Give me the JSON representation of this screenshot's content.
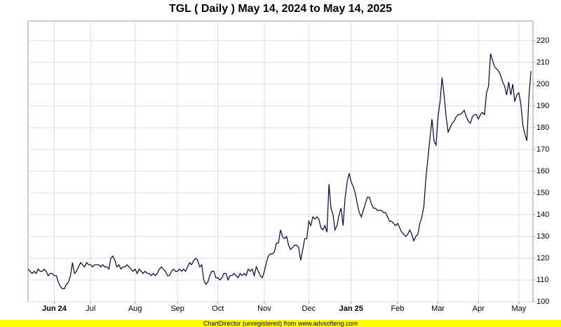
{
  "chart_data": {
    "type": "line",
    "title": "TGL ( Daily ) May 14, 2024 to May 14, 2025",
    "footer": "ChartDirector (unregistered) from www.advsofteng.com",
    "color": "#000044",
    "grid": true,
    "ylim": [
      100,
      229
    ],
    "yticks": [
      100,
      110,
      120,
      130,
      140,
      150,
      160,
      170,
      180,
      190,
      200,
      210,
      220
    ],
    "xlim": [
      0,
      250
    ],
    "xticks": [
      {
        "value": 13,
        "label": "Jun 24"
      },
      {
        "value": 31,
        "label": "Jul"
      },
      {
        "value": 53,
        "label": "Aug"
      },
      {
        "value": 74,
        "label": "Sep"
      },
      {
        "value": 94,
        "label": "Oct"
      },
      {
        "value": 117,
        "label": "Nov"
      },
      {
        "value": 139,
        "label": "Dec"
      },
      {
        "value": 160,
        "label": "Jan 25"
      },
      {
        "value": 183,
        "label": "Feb"
      },
      {
        "value": 203,
        "label": "Mar"
      },
      {
        "value": 223,
        "label": "Apr"
      },
      {
        "value": 243,
        "label": "May"
      }
    ],
    "values": [
      115,
      114,
      113,
      114,
      113,
      115,
      114,
      114,
      115,
      114,
      112,
      113,
      113,
      112,
      112,
      109,
      107,
      106,
      106,
      108,
      109,
      112,
      118,
      113,
      114,
      116,
      118,
      117,
      116,
      118,
      117,
      117,
      116,
      117,
      117,
      117,
      116,
      117,
      116,
      116,
      115,
      120,
      121,
      119,
      116,
      117,
      115,
      116,
      116,
      117,
      116,
      115,
      114,
      115,
      113,
      115,
      114,
      113,
      114,
      113,
      113,
      112,
      113,
      112,
      113,
      115,
      116,
      115,
      114,
      112,
      112,
      114,
      115,
      114,
      114,
      115,
      114,
      115,
      114,
      116,
      118,
      117,
      119,
      120,
      119,
      116,
      117,
      110,
      108,
      109,
      112,
      114,
      114,
      111,
      111,
      110,
      111,
      113,
      113,
      110,
      112,
      112,
      113,
      112,
      111,
      113,
      112,
      113,
      112,
      115,
      114,
      115,
      112,
      116,
      114,
      112,
      111,
      114,
      118,
      121,
      122,
      122,
      123,
      127,
      127,
      133,
      130,
      129,
      130,
      126,
      124,
      125,
      126,
      126,
      125,
      119,
      124,
      129,
      129,
      137,
      135,
      139,
      138,
      139,
      138,
      134,
      133,
      135,
      132,
      154,
      143,
      140,
      133,
      135,
      140,
      143,
      135,
      148,
      155,
      159,
      155,
      153,
      150,
      145,
      141,
      139,
      142,
      145,
      148,
      148,
      145,
      143,
      143,
      142,
      142,
      142,
      141,
      141,
      139,
      137,
      137,
      136,
      135,
      136,
      134,
      132,
      131,
      130,
      131,
      133,
      131,
      128,
      130,
      131,
      136,
      139,
      144,
      157,
      166,
      175,
      184,
      174,
      172,
      185,
      192,
      203,
      195,
      185,
      178,
      180,
      182,
      183,
      185,
      186,
      186,
      187,
      188,
      185,
      183,
      182,
      185,
      186,
      186,
      184,
      186,
      187,
      186,
      196,
      199,
      214,
      211,
      208,
      207,
      206,
      204,
      201,
      199,
      195,
      201,
      195,
      200,
      192,
      195,
      196,
      191,
      181,
      177,
      174,
      194,
      206
    ]
  }
}
